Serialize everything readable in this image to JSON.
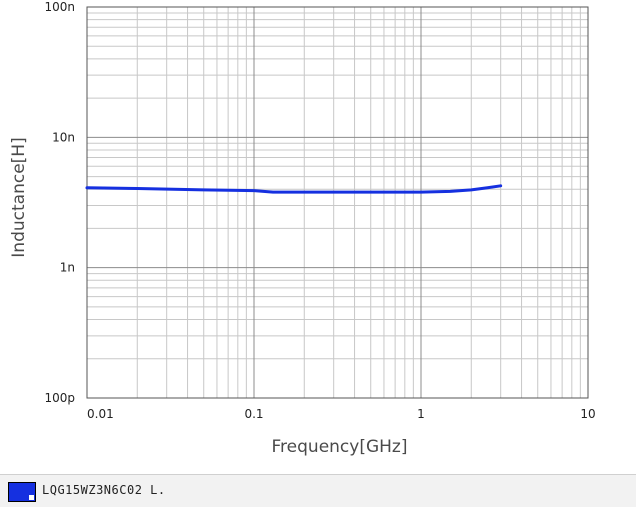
{
  "chart_data": {
    "type": "line",
    "xlabel": "Frequency[GHz]",
    "ylabel": "Inductance[H]",
    "x_scale": "log",
    "y_scale": "log",
    "xlim": [
      0.01,
      10
    ],
    "ylim": [
      1e-10,
      1e-07
    ],
    "x_ticks": [
      {
        "value": 0.01,
        "label": "0.01"
      },
      {
        "value": 0.1,
        "label": "0.1"
      },
      {
        "value": 1,
        "label": "1"
      },
      {
        "value": 10,
        "label": "10"
      }
    ],
    "y_ticks": [
      {
        "value": 1e-10,
        "label": "100p"
      },
      {
        "value": 1e-09,
        "label": "1n"
      },
      {
        "value": 1e-08,
        "label": "10n"
      },
      {
        "value": 1e-07,
        "label": "100n"
      }
    ],
    "grid": true,
    "series": [
      {
        "name": "LQG15WZ3N6C02 L.",
        "color": "#1530e0",
        "x": [
          0.01,
          0.02,
          0.05,
          0.1,
          0.13,
          0.2,
          0.5,
          1.0,
          1.5,
          2.0,
          2.5,
          3.0
        ],
        "y": [
          4.1e-09,
          4.05e-09,
          3.95e-09,
          3.9e-09,
          3.8e-09,
          3.8e-09,
          3.8e-09,
          3.8e-09,
          3.85e-09,
          3.95e-09,
          4.1e-09,
          4.25e-09
        ]
      }
    ]
  },
  "legend": {
    "label": "LQG15WZ3N6C02 L.",
    "swatch_color": "#1530e0"
  }
}
